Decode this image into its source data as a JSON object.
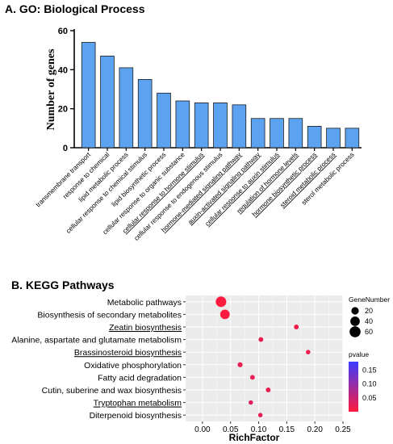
{
  "chart_data": [
    {
      "type": "bar",
      "title": "A. GO: Biological Process",
      "ylabel": "Number of genes",
      "xlabel": "",
      "ylim": [
        0,
        60
      ],
      "yticks": [
        0,
        20,
        40,
        60
      ],
      "bar_color": "#5ba3f0",
      "categories": [
        "transmembrane transport",
        "response to chemical",
        "lipid metabolic process",
        "cellular response to chemical stimulus",
        "lipid biosynthetic process",
        "cellular response to organic substance",
        "cellular response to hormone stimulus",
        "cellular response to endogenous stimulus",
        "hormone-mediated signaling pathway",
        "auxin-activated signaling pathway",
        "cellular response to auxin stimulus",
        "regulation of hormone levels",
        "hormone biosynthetic process",
        "steroid metabolic process",
        "sterol metabolic process"
      ],
      "values": [
        54,
        47,
        41,
        35,
        28,
        24,
        23,
        23,
        22,
        15,
        15,
        15,
        11,
        10,
        10
      ],
      "underlined": [
        false,
        false,
        false,
        false,
        false,
        false,
        true,
        false,
        true,
        true,
        true,
        true,
        true,
        true,
        false
      ]
    },
    {
      "type": "scatter",
      "title": "B. KEGG Pathways",
      "xlabel": "RichFactor",
      "ylabel": "",
      "xlim": [
        -0.03,
        0.25
      ],
      "xticks": [
        0.0,
        0.05,
        0.1,
        0.15,
        0.2,
        0.25
      ],
      "xtick_labels": [
        "0.00",
        "0.05",
        "0.10",
        "0.15",
        "0.20",
        "0.25"
      ],
      "grid": true,
      "background": "#ebebeb",
      "categories": [
        "Metabolic pathways",
        "Biosynthesis of secondary metabolites",
        "Zeatin biosynthesis",
        "Alanine, aspartate and glutamate metabolism",
        "Brassinosteroid biosynthesis",
        "Oxidative phosphorylation",
        "Fatty acid degradation",
        "Cutin, suberine and wax biosynthesis",
        "Tryptophan metabolism",
        "Diterpenoid biosynthesis"
      ],
      "underlined": [
        false,
        false,
        true,
        false,
        true,
        false,
        false,
        false,
        true,
        false
      ],
      "x": [
        0.033,
        0.04,
        0.167,
        0.104,
        0.188,
        0.067,
        0.089,
        0.117,
        0.086,
        0.103
      ],
      "gene_number": [
        54,
        41,
        4,
        4,
        3,
        5,
        4,
        4,
        3,
        3
      ],
      "pvalue": [
        0.001,
        0.001,
        0.012,
        0.02,
        0.015,
        0.02,
        0.02,
        0.02,
        0.03,
        0.025
      ],
      "size_legend": {
        "title": "GeneNumber",
        "values": [
          20,
          40,
          60
        ],
        "labels": [
          "20",
          "40",
          "60"
        ]
      },
      "color_legend": {
        "title": "pvalue",
        "ticks": [
          0.05,
          0.1,
          0.15
        ],
        "tick_labels": [
          "0.05",
          "0.10",
          "0.15"
        ],
        "range": [
          0.0,
          0.18
        ],
        "low_color": "#ff1a3d",
        "high_color": "#3b3bff"
      }
    }
  ]
}
